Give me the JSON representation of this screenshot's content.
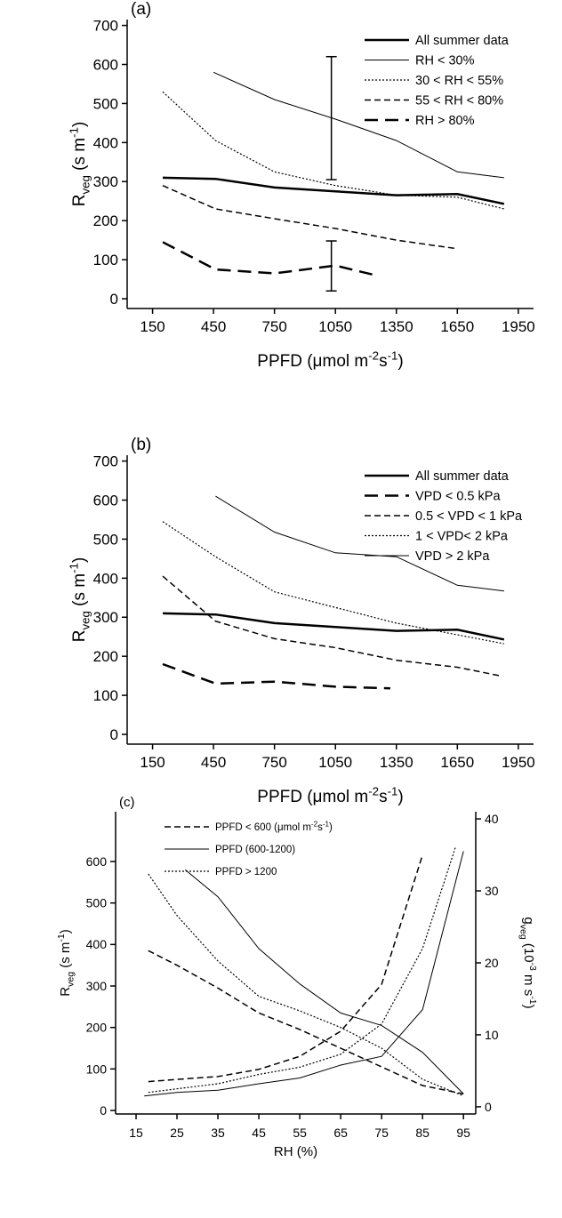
{
  "chart_data": [
    {
      "type": "line",
      "title": "(a)",
      "xlabel": [
        "PPFD (μmol m",
        {
          "sup": "-2"
        },
        "s",
        {
          "sup": "-1"
        },
        ")"
      ],
      "ylabel": [
        "R",
        {
          "sub": "veg"
        },
        " (s m",
        {
          "sup": "-1"
        },
        ")"
      ],
      "xlim": [
        25,
        2025
      ],
      "ylim": [
        -25,
        715
      ],
      "xticks": [
        150,
        450,
        750,
        1050,
        1350,
        1650,
        1950
      ],
      "yticks": [
        0,
        100,
        200,
        300,
        400,
        500,
        600,
        700
      ],
      "legend": "upper right",
      "series": [
        {
          "name": "All summer data",
          "color": "#000",
          "style": "thick",
          "x": [
            200,
            460,
            750,
            1050,
            1350,
            1650,
            1880
          ],
          "values": [
            310,
            307,
            285,
            275,
            265,
            268,
            243
          ]
        },
        {
          "name": "RH < 30%",
          "color": "#000",
          "style": "solid",
          "x": [
            450,
            750,
            1050,
            1350,
            1650,
            1880
          ],
          "values": [
            580,
            510,
            460,
            405,
            325,
            310
          ]
        },
        {
          "name": "30 < RH < 55%",
          "color": "#000",
          "style": "dotted",
          "x": [
            200,
            460,
            750,
            1050,
            1350,
            1650,
            1880
          ],
          "values": [
            530,
            405,
            325,
            290,
            265,
            260,
            230
          ]
        },
        {
          "name": "55 < RH < 80%",
          "color": "#000",
          "style": "dashed",
          "x": [
            200,
            460,
            750,
            1050,
            1350,
            1650
          ],
          "values": [
            290,
            230,
            205,
            180,
            150,
            128
          ]
        },
        {
          "name": "RH > 80%",
          "color": "#000",
          "style": "long-dashed",
          "x": [
            200,
            460,
            750,
            1050,
            1250
          ],
          "values": [
            145,
            75,
            65,
            85,
            60
          ]
        }
      ],
      "error_bars": [
        {
          "x": 1030,
          "low": 305,
          "high": 620
        },
        {
          "x": 1030,
          "low": 20,
          "high": 148
        }
      ]
    },
    {
      "type": "line",
      "title": "(b)",
      "xlabel": [
        "PPFD (μmol m",
        {
          "sup": "-2"
        },
        "s",
        {
          "sup": "-1"
        },
        ")"
      ],
      "ylabel": [
        "R",
        {
          "sub": "veg"
        },
        " (s m",
        {
          "sup": "-1"
        },
        ")"
      ],
      "xlim": [
        25,
        2025
      ],
      "ylim": [
        -25,
        715
      ],
      "xticks": [
        150,
        450,
        750,
        1050,
        1350,
        1650,
        1950
      ],
      "yticks": [
        0,
        100,
        200,
        300,
        400,
        500,
        600,
        700
      ],
      "legend": "upper right",
      "series": [
        {
          "name": "All summer data",
          "color": "#000",
          "style": "thick",
          "x": [
            200,
            460,
            750,
            1050,
            1350,
            1650,
            1880
          ],
          "values": [
            310,
            307,
            285,
            275,
            265,
            268,
            243
          ]
        },
        {
          "name": "VPD < 0.5 kPa",
          "color": "#000",
          "style": "long-dashed",
          "x": [
            200,
            460,
            750,
            1050,
            1320
          ],
          "values": [
            180,
            130,
            135,
            122,
            118
          ]
        },
        {
          "name": "0.5 < VPD < 1 kPa",
          "color": "#000",
          "style": "dashed",
          "x": [
            200,
            460,
            750,
            1050,
            1350,
            1650,
            1860
          ],
          "values": [
            405,
            290,
            245,
            222,
            190,
            172,
            150
          ]
        },
        {
          "name": "1 < VPD< 2 kPa",
          "color": "#000",
          "style": "dotted",
          "x": [
            200,
            460,
            750,
            1050,
            1350,
            1650,
            1880
          ],
          "values": [
            545,
            455,
            365,
            325,
            285,
            255,
            232
          ]
        },
        {
          "name": "VPD > 2 kPa",
          "color": "#000",
          "style": "solid",
          "x": [
            460,
            750,
            1050,
            1350,
            1650,
            1880
          ],
          "values": [
            610,
            518,
            465,
            455,
            382,
            367
          ]
        }
      ]
    },
    {
      "type": "line",
      "title": "(c)",
      "xlabel": [
        "RH (%)"
      ],
      "ylabel": [
        "R",
        {
          "sub": "veg"
        },
        " (s m",
        {
          "sup": "-1"
        },
        ")"
      ],
      "y2label": [
        "g",
        {
          "sub": "veg"
        },
        " (10",
        {
          "sup": "-3"
        },
        " m s",
        {
          "sup": "-1"
        },
        ")"
      ],
      "xlim": [
        10,
        98
      ],
      "ylim": [
        -8.5,
        720
      ],
      "y2lim": [
        -1,
        41
      ],
      "xticks": [
        15,
        25,
        35,
        45,
        55,
        65,
        75,
        85,
        95
      ],
      "yticks": [
        0,
        100,
        200,
        300,
        400,
        500,
        600
      ],
      "y2ticks": [
        0,
        10,
        20,
        30,
        40
      ],
      "legend": "upper center",
      "series": [
        {
          "name": [
            "PPFD < 600 (μmol m",
            {
              "sup": "-2"
            },
            "s",
            {
              "sup": "-1"
            },
            ")"
          ],
          "color": "#000",
          "style": "dashed",
          "x": [
            18,
            25,
            35,
            45,
            55,
            65,
            75,
            85,
            95
          ],
          "values": [
            385,
            350,
            295,
            235,
            195,
            150,
            105,
            60,
            40
          ],
          "g_x": [
            18,
            25,
            35,
            45,
            55,
            65,
            75,
            85
          ],
          "g_values": [
            3.5,
            3.8,
            4.2,
            5.2,
            7,
            10.5,
            17,
            35
          ]
        },
        {
          "name": [
            "PPFD (600-1200)"
          ],
          "color": "#000",
          "style": "solid",
          "x": [
            27,
            35,
            45,
            55,
            65,
            75,
            85,
            95
          ],
          "values": [
            580,
            515,
            390,
            305,
            235,
            205,
            140,
            40
          ],
          "g_x": [
            17,
            25,
            35,
            45,
            55,
            65,
            75,
            85,
            95
          ],
          "g_values": [
            1.5,
            2,
            2.3,
            3.2,
            4,
            5.8,
            7,
            13.5,
            35.5
          ]
        },
        {
          "name": [
            "PPFD > 1200"
          ],
          "color": "#000",
          "style": "dotted",
          "x": [
            18,
            25,
            35,
            45,
            55,
            65,
            75,
            85,
            95
          ],
          "values": [
            570,
            470,
            360,
            275,
            240,
            200,
            150,
            75,
            35
          ],
          "g_x": [
            18,
            25,
            35,
            45,
            55,
            65,
            75,
            85,
            93
          ],
          "g_values": [
            2,
            2.5,
            3.2,
            4.5,
            5.5,
            7.3,
            11.5,
            22,
            36
          ]
        }
      ]
    }
  ]
}
